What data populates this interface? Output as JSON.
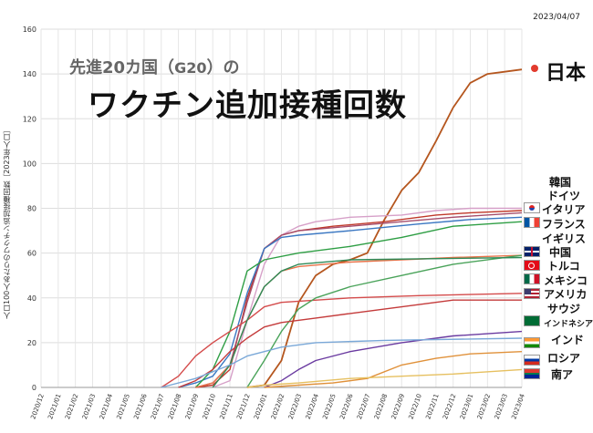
{
  "header": {
    "date": "2023/04/07",
    "title_line1_part1": "先進20カ国（",
    "title_line1_g20": "G20",
    "title_line1_part2": "）の",
    "title_line2": "ワクチン追加接種回数",
    "y_axis_label": "人口100人あたりのワクチン追加接種回数［2023年人口］"
  },
  "country_labels": {
    "japan": "日本",
    "korea": "韓国",
    "germany": "ドイツ",
    "italy": "イタリア",
    "france": "フランス",
    "uk": "イギリス",
    "china": "中国",
    "turkey": "トルコ",
    "mexico": "メキシコ",
    "usa": "アメリカ",
    "saudi": "サウジ",
    "indonesia": "インドネシア",
    "india": "インド",
    "russia": "ロシア",
    "south_africa": "南ア"
  },
  "flag_icons": [
    "korea-flag-icon",
    "italy-flag-icon",
    "france-flag-icon",
    "uk-flag-icon",
    "china-flag-icon",
    "turkey-flag-icon",
    "mexico-flag-icon",
    "usa-flag-icon",
    "saudi-flag-icon",
    "india-flag-icon",
    "russia-flag-icon",
    "south-africa-flag-icon"
  ],
  "chart_data": {
    "type": "line",
    "title": "先進20カ国（G20）の ワクチン追加接種回数",
    "ylabel": "人口100人あたりのワクチン追加接種回数［2023年人口］",
    "xlabel": "",
    "ylim": [
      0,
      160
    ],
    "yticks": [
      0,
      20,
      40,
      60,
      80,
      100,
      120,
      140,
      160
    ],
    "x_ticks": [
      "2020/12",
      "2021/01",
      "2021/02",
      "2021/03",
      "2021/04",
      "2021/05",
      "2021/06",
      "2021/07",
      "2021/08",
      "2021/09",
      "2021/10",
      "2021/11",
      "2021/12",
      "2022/01",
      "2022/02",
      "2022/03",
      "2022/04",
      "2022/05",
      "2022/06",
      "2022/07",
      "2022/08",
      "2022/09",
      "2022/10",
      "2022/11",
      "2022/12",
      "2023/01",
      "2023/02",
      "2023/03",
      "2023/04"
    ],
    "grid": true,
    "series": [
      {
        "name": "Japan",
        "color": "#b5561e",
        "points": [
          [
            "2021/12",
            0
          ],
          [
            "2022/01",
            1
          ],
          [
            "2022/02",
            12
          ],
          [
            "2022/03",
            38
          ],
          [
            "2022/04",
            50
          ],
          [
            "2022/05",
            55
          ],
          [
            "2022/06",
            57
          ],
          [
            "2022/07",
            60
          ],
          [
            "2022/08",
            75
          ],
          [
            "2022/09",
            88
          ],
          [
            "2022/10",
            96
          ],
          [
            "2022/11",
            110
          ],
          [
            "2022/12",
            125
          ],
          [
            "2023/01",
            136
          ],
          [
            "2023/02",
            140
          ],
          [
            "2023/03",
            141
          ],
          [
            "2023/04",
            142
          ]
        ]
      },
      {
        "name": "South Korea",
        "color": "#d6a0c8",
        "points": [
          [
            "2021/10",
            0
          ],
          [
            "2021/11",
            3
          ],
          [
            "2021/12",
            30
          ],
          [
            "2022/01",
            55
          ],
          [
            "2022/02",
            68
          ],
          [
            "2022/03",
            72
          ],
          [
            "2022/04",
            74
          ],
          [
            "2022/06",
            76
          ],
          [
            "2022/09",
            77
          ],
          [
            "2022/11",
            79
          ],
          [
            "2023/01",
            80
          ],
          [
            "2023/04",
            80
          ]
        ]
      },
      {
        "name": "Germany",
        "color": "#c0392b",
        "points": [
          [
            "2021/09",
            0
          ],
          [
            "2021/10",
            1
          ],
          [
            "2021/11",
            8
          ],
          [
            "2021/12",
            40
          ],
          [
            "2022/01",
            62
          ],
          [
            "2022/02",
            68
          ],
          [
            "2022/03",
            70
          ],
          [
            "2022/05",
            72
          ],
          [
            "2022/08",
            74
          ],
          [
            "2022/11",
            77
          ],
          [
            "2023/01",
            78
          ],
          [
            "2023/04",
            79
          ]
        ]
      },
      {
        "name": "Italy",
        "color": "#a64d6b",
        "points": [
          [
            "2021/09",
            0
          ],
          [
            "2021/10",
            2
          ],
          [
            "2021/11",
            10
          ],
          [
            "2021/12",
            38
          ],
          [
            "2022/01",
            62
          ],
          [
            "2022/02",
            68
          ],
          [
            "2022/03",
            70
          ],
          [
            "2022/06",
            72
          ],
          [
            "2022/09",
            74
          ],
          [
            "2022/12",
            76
          ],
          [
            "2023/04",
            78
          ]
        ]
      },
      {
        "name": "France",
        "color": "#3a77c2",
        "points": [
          [
            "2021/08",
            0
          ],
          [
            "2021/09",
            2
          ],
          [
            "2021/10",
            5
          ],
          [
            "2021/11",
            15
          ],
          [
            "2021/12",
            42
          ],
          [
            "2022/01",
            62
          ],
          [
            "2022/02",
            67
          ],
          [
            "2022/03",
            68
          ],
          [
            "2022/06",
            70
          ],
          [
            "2022/10",
            73
          ],
          [
            "2023/01",
            75
          ],
          [
            "2023/04",
            76
          ]
        ]
      },
      {
        "name": "United Kingdom",
        "color": "#2e9e44",
        "points": [
          [
            "2021/09",
            0
          ],
          [
            "2021/10",
            8
          ],
          [
            "2021/11",
            25
          ],
          [
            "2021/12",
            52
          ],
          [
            "2022/01",
            57
          ],
          [
            "2022/03",
            60
          ],
          [
            "2022/06",
            63
          ],
          [
            "2022/09",
            67
          ],
          [
            "2022/12",
            72
          ],
          [
            "2023/04",
            74
          ]
        ]
      },
      {
        "name": "China",
        "color": "#e8734a",
        "points": [
          [
            "2021/09",
            0
          ],
          [
            "2021/10",
            2
          ],
          [
            "2021/11",
            10
          ],
          [
            "2021/12",
            30
          ],
          [
            "2022/01",
            45
          ],
          [
            "2022/02",
            52
          ],
          [
            "2022/03",
            54
          ],
          [
            "2022/06",
            56
          ],
          [
            "2022/12",
            58
          ],
          [
            "2023/04",
            59
          ]
        ]
      },
      {
        "name": "Turkey",
        "color": "#d44b4b",
        "points": [
          [
            "2021/07",
            0
          ],
          [
            "2021/08",
            5
          ],
          [
            "2021/09",
            14
          ],
          [
            "2021/10",
            20
          ],
          [
            "2021/11",
            25
          ],
          [
            "2021/12",
            30
          ],
          [
            "2022/01",
            36
          ],
          [
            "2022/02",
            38
          ],
          [
            "2022/06",
            40
          ],
          [
            "2022/10",
            41
          ],
          [
            "2023/04",
            42
          ]
        ]
      },
      {
        "name": "Mexico",
        "color": "#4aa35a",
        "points": [
          [
            "2021/12",
            0
          ],
          [
            "2022/01",
            12
          ],
          [
            "2022/02",
            25
          ],
          [
            "2022/03",
            35
          ],
          [
            "2022/04",
            40
          ],
          [
            "2022/06",
            45
          ],
          [
            "2022/09",
            50
          ],
          [
            "2022/12",
            55
          ],
          [
            "2023/04",
            59
          ]
        ]
      },
      {
        "name": "United States",
        "color": "#c43b3b",
        "points": [
          [
            "2021/08",
            0
          ],
          [
            "2021/09",
            3
          ],
          [
            "2021/10",
            8
          ],
          [
            "2021/11",
            16
          ],
          [
            "2021/12",
            22
          ],
          [
            "2022/01",
            27
          ],
          [
            "2022/02",
            29
          ],
          [
            "2022/04",
            31
          ],
          [
            "2022/06",
            33
          ],
          [
            "2022/09",
            36
          ],
          [
            "2022/12",
            39
          ],
          [
            "2023/04",
            39
          ]
        ]
      },
      {
        "name": "Saudi Arabia",
        "color": "#2f8a57",
        "points": [
          [
            "2021/10",
            0
          ],
          [
            "2021/11",
            10
          ],
          [
            "2021/12",
            30
          ],
          [
            "2022/01",
            45
          ],
          [
            "2022/02",
            52
          ],
          [
            "2022/03",
            55
          ],
          [
            "2022/06",
            57
          ],
          [
            "2023/04",
            58
          ]
        ]
      },
      {
        "name": "Indonesia",
        "color": "#6a3aa0",
        "points": [
          [
            "2022/01",
            0
          ],
          [
            "2022/02",
            3
          ],
          [
            "2022/03",
            8
          ],
          [
            "2022/04",
            12
          ],
          [
            "2022/06",
            16
          ],
          [
            "2022/09",
            20
          ],
          [
            "2022/12",
            23
          ],
          [
            "2023/04",
            25
          ]
        ]
      },
      {
        "name": "India",
        "color": "#e0913a",
        "points": [
          [
            "2022/01",
            0
          ],
          [
            "2022/03",
            1
          ],
          [
            "2022/05",
            2
          ],
          [
            "2022/07",
            4
          ],
          [
            "2022/09",
            10
          ],
          [
            "2022/11",
            13
          ],
          [
            "2023/01",
            15
          ],
          [
            "2023/04",
            16
          ]
        ]
      },
      {
        "name": "Russia",
        "color": "#7aa8d8",
        "points": [
          [
            "2021/07",
            0
          ],
          [
            "2021/09",
            4
          ],
          [
            "2021/11",
            10
          ],
          [
            "2021/12",
            14
          ],
          [
            "2022/02",
            18
          ],
          [
            "2022/04",
            20
          ],
          [
            "2022/08",
            21
          ],
          [
            "2023/04",
            22
          ]
        ]
      },
      {
        "name": "South Africa",
        "color": "#e6c060",
        "points": [
          [
            "2021/12",
            0
          ],
          [
            "2022/01",
            1
          ],
          [
            "2022/03",
            2
          ],
          [
            "2022/06",
            4
          ],
          [
            "2022/09",
            5
          ],
          [
            "2022/12",
            6
          ],
          [
            "2023/04",
            8
          ]
        ]
      }
    ]
  }
}
